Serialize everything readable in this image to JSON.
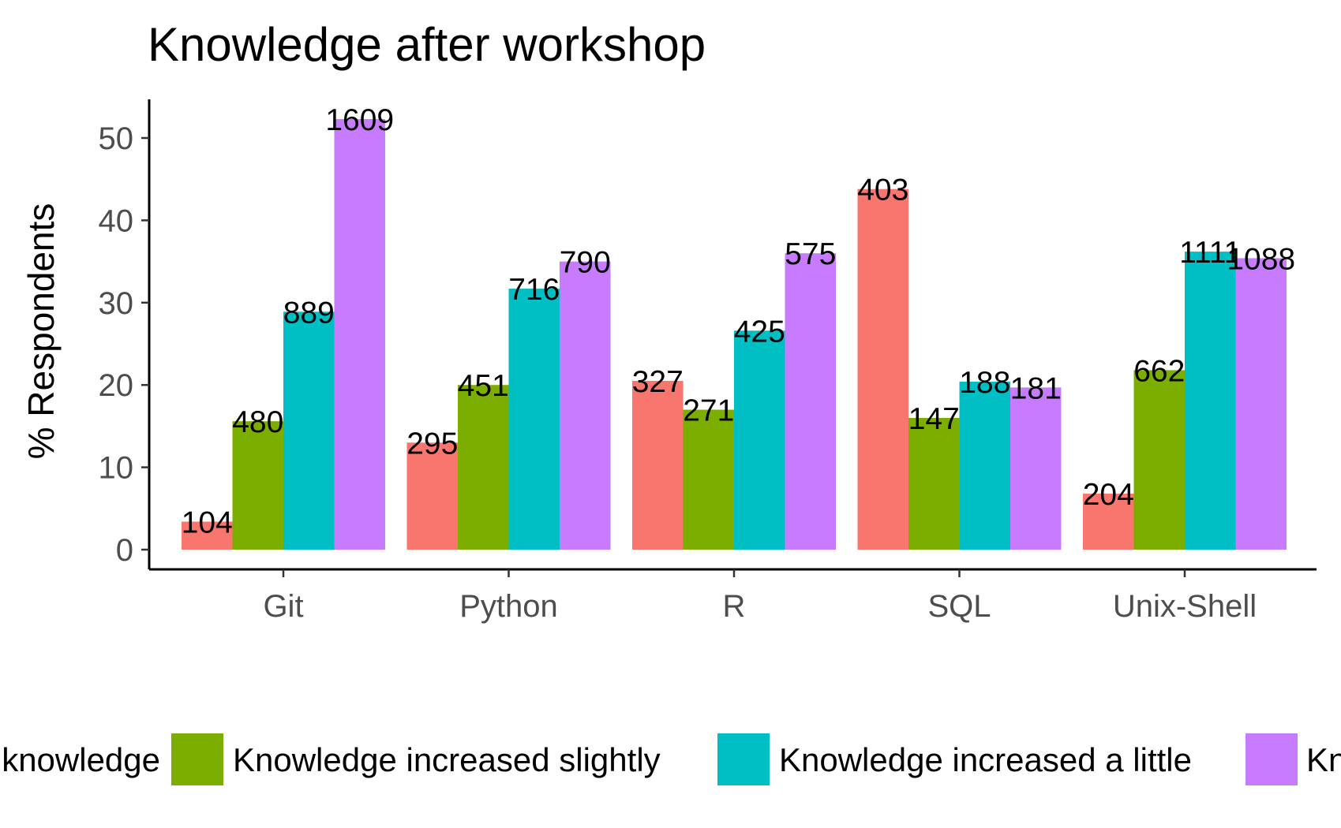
{
  "chart_data": {
    "type": "bar",
    "title": "Knowledge after workshop",
    "xlabel": "",
    "ylabel": "% Respondents",
    "ylim": [
      0,
      54.5
    ],
    "yticks": [
      0,
      10,
      20,
      30,
      40,
      50
    ],
    "grid": false,
    "legend_position": "bottom",
    "categories": [
      "Git",
      "Python",
      "R",
      "SQL",
      "Unix-Shell"
    ],
    "series": [
      {
        "name": "knowledge",
        "color": "#F8766D",
        "values": [
          3.4,
          13.0,
          20.5,
          43.8,
          6.8
        ],
        "labels": [
          "104",
          "295",
          "327",
          "403",
          "204"
        ]
      },
      {
        "name": "Knowledge increased slightly",
        "color": "#7CAE00",
        "values": [
          15.6,
          20.0,
          17.0,
          16.0,
          21.8
        ],
        "labels": [
          "480",
          "451",
          "271",
          "147",
          "662"
        ]
      },
      {
        "name": "Knowledge increased a little",
        "color": "#00BFC4",
        "values": [
          28.9,
          31.7,
          26.6,
          20.4,
          36.2
        ],
        "labels": [
          "889",
          "716",
          "425",
          "188",
          "1111"
        ]
      },
      {
        "name": "Kn",
        "color": "#C77CFF",
        "values": [
          52.3,
          35.0,
          36.0,
          19.7,
          35.4
        ],
        "labels": [
          "1609",
          "790",
          "575",
          "181",
          "1088"
        ]
      }
    ]
  }
}
